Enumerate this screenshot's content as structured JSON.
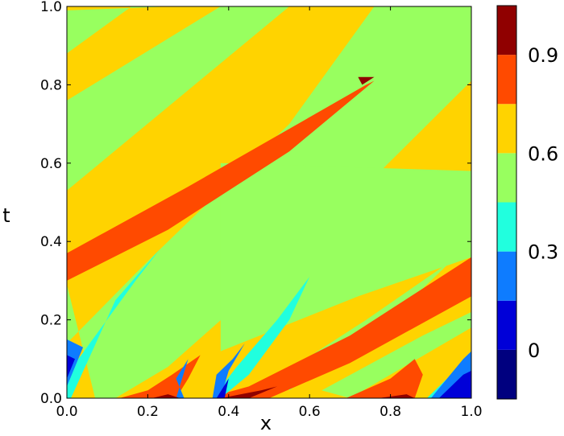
{
  "chart_data": {
    "type": "heatmap",
    "subtype": "filled-contour",
    "title": "",
    "xlabel": "x",
    "ylabel": "t",
    "xlim": [
      0.0,
      1.0
    ],
    "ylim": [
      0.0,
      1.0
    ],
    "x_ticks": [
      "0.0",
      "0.2",
      "0.4",
      "0.6",
      "0.8",
      "1.0"
    ],
    "y_ticks": [
      "0.0",
      "0.2",
      "0.4",
      "0.6",
      "0.8",
      "1.0"
    ],
    "grid": false,
    "colormap": "jet",
    "colorbar": {
      "position": "right",
      "range": [
        -0.15,
        1.05
      ],
      "levels": [
        -0.15,
        0.0,
        0.15,
        0.3,
        0.45,
        0.6,
        0.75,
        0.9,
        1.05
      ],
      "tick_labels": [
        "0",
        "0.3",
        "0.6",
        "0.9"
      ],
      "tick_values": [
        0.0,
        0.3,
        0.6,
        0.9
      ],
      "colors": [
        "#00007f",
        "#0000d8",
        "#0e7cff",
        "#21ffde",
        "#98ff5f",
        "#ffd300",
        "#ff4a00",
        "#900000"
      ]
    },
    "regions": [
      {
        "level": 5,
        "points": [
          [
            0.0,
            1.0
          ],
          [
            1.0,
            1.0
          ],
          [
            1.0,
            0.0
          ],
          [
            0.0,
            0.0
          ]
        ]
      },
      {
        "level": 4,
        "points": [
          [
            0.0,
            0.99
          ],
          [
            0.26,
            1.0
          ],
          [
            0.16,
            1.0
          ],
          [
            0.0,
            0.88
          ]
        ]
      },
      {
        "level": 4,
        "points": [
          [
            0.0,
            0.76
          ],
          [
            0.0,
            0.53
          ],
          [
            0.55,
            1.0
          ],
          [
            0.38,
            1.0
          ],
          [
            0.0,
            0.76
          ]
        ]
      },
      {
        "level": 4,
        "points": [
          [
            0.0,
            0.29
          ],
          [
            0.0,
            0.14
          ],
          [
            0.2,
            0.35
          ],
          [
            0.55,
            0.7
          ],
          [
            0.76,
            1.0
          ],
          [
            0.72,
            1.0
          ],
          [
            0.93,
            1.0
          ],
          [
            1.0,
            1.0
          ],
          [
            1.0,
            0.81
          ],
          [
            0.6,
            0.4
          ],
          [
            0.25,
            0.08
          ],
          [
            0.12,
            0.0
          ],
          [
            0.07,
            0.0
          ],
          [
            0.0,
            0.29
          ]
        ]
      },
      {
        "level": 4,
        "points": [
          [
            0.38,
            0.6
          ],
          [
            1.0,
            0.58
          ],
          [
            1.0,
            0.36
          ],
          [
            0.72,
            0.26
          ],
          [
            0.38,
            0.12
          ],
          [
            0.38,
            0.6
          ]
        ]
      },
      {
        "level": 4,
        "points": [
          [
            0.53,
            0.06
          ],
          [
            0.74,
            0.2
          ],
          [
            0.95,
            0.35
          ],
          [
            0.8,
            0.2
          ],
          [
            0.55,
            0.02
          ],
          [
            0.53,
            0.06
          ]
        ]
      },
      {
        "level": 4,
        "points": [
          [
            0.63,
            0.02
          ],
          [
            0.88,
            0.16
          ],
          [
            1.0,
            0.22
          ],
          [
            1.0,
            0.18
          ],
          [
            0.7,
            0.0
          ],
          [
            0.63,
            0.02
          ]
        ]
      },
      {
        "level": 6,
        "points": [
          [
            0.0,
            0.37
          ],
          [
            0.3,
            0.54
          ],
          [
            0.74,
            0.8
          ],
          [
            0.76,
            0.81
          ],
          [
            0.55,
            0.63
          ],
          [
            0.25,
            0.43
          ],
          [
            0.0,
            0.3
          ]
        ]
      },
      {
        "level": 6,
        "points": [
          [
            0.38,
            0.01
          ],
          [
            0.45,
            0.03
          ],
          [
            0.7,
            0.16
          ],
          [
            1.0,
            0.36
          ],
          [
            1.0,
            0.26
          ],
          [
            0.7,
            0.09
          ],
          [
            0.5,
            0.0
          ],
          [
            0.38,
            0.0
          ]
        ]
      },
      {
        "level": 6,
        "points": [
          [
            0.13,
            0.0
          ],
          [
            0.2,
            0.02
          ],
          [
            0.26,
            0.06
          ],
          [
            0.33,
            0.11
          ],
          [
            0.3,
            0.05
          ],
          [
            0.27,
            0.0
          ]
        ]
      },
      {
        "level": 6,
        "points": [
          [
            0.69,
            0.0
          ],
          [
            0.8,
            0.05
          ],
          [
            0.86,
            0.1
          ],
          [
            0.88,
            0.06
          ],
          [
            0.86,
            0.0
          ]
        ]
      },
      {
        "level": 3,
        "points": [
          [
            0.0,
            0.06
          ],
          [
            0.0,
            0.0
          ],
          [
            0.01,
            0.0
          ],
          [
            0.12,
            0.25
          ],
          [
            0.23,
            0.38
          ],
          [
            0.17,
            0.3
          ],
          [
            0.0,
            0.06
          ]
        ]
      },
      {
        "level": 3,
        "points": [
          [
            0.36,
            0.0
          ],
          [
            0.42,
            0.08
          ],
          [
            0.52,
            0.2
          ],
          [
            0.6,
            0.31
          ],
          [
            0.55,
            0.2
          ],
          [
            0.45,
            0.06
          ],
          [
            0.38,
            0.0
          ]
        ]
      },
      {
        "level": 3,
        "points": [
          [
            0.89,
            0.0
          ],
          [
            0.94,
            0.05
          ],
          [
            1.0,
            0.12
          ],
          [
            1.0,
            0.05
          ],
          [
            0.92,
            0.0
          ]
        ]
      },
      {
        "level": 2,
        "points": [
          [
            0.0,
            0.03
          ],
          [
            0.04,
            0.13
          ],
          [
            0.0,
            0.15
          ]
        ]
      },
      {
        "level": 2,
        "points": [
          [
            0.27,
            0.0
          ],
          [
            0.3,
            0.1
          ],
          [
            0.27,
            0.05
          ],
          [
            0.29,
            0.0
          ]
        ]
      },
      {
        "level": 2,
        "points": [
          [
            0.36,
            0.0
          ],
          [
            0.37,
            0.06
          ],
          [
            0.41,
            0.1
          ],
          [
            0.44,
            0.14
          ],
          [
            0.4,
            0.07
          ],
          [
            0.38,
            0.0
          ]
        ]
      },
      {
        "level": 2,
        "points": [
          [
            0.9,
            0.0
          ],
          [
            0.98,
            0.1
          ],
          [
            1.0,
            0.12
          ],
          [
            1.0,
            0.05
          ],
          [
            0.95,
            0.0
          ]
        ]
      },
      {
        "level": 1,
        "points": [
          [
            0.0,
            0.05
          ],
          [
            0.02,
            0.1
          ],
          [
            0.0,
            0.11
          ]
        ]
      },
      {
        "level": 1,
        "points": [
          [
            0.92,
            0.0
          ],
          [
            0.98,
            0.06
          ],
          [
            1.0,
            0.07
          ],
          [
            1.0,
            0.0
          ]
        ]
      },
      {
        "level": 1,
        "points": [
          [
            0.37,
            0.0
          ],
          [
            0.4,
            0.05
          ],
          [
            0.39,
            0.0
          ]
        ]
      },
      {
        "level": 7,
        "points": [
          [
            0.21,
            0.0
          ],
          [
            0.25,
            0.01
          ],
          [
            0.28,
            0.0
          ]
        ]
      },
      {
        "level": 7,
        "points": [
          [
            0.38,
            0.0
          ],
          [
            0.48,
            0.02
          ],
          [
            0.52,
            0.03
          ],
          [
            0.45,
            0.0
          ]
        ]
      },
      {
        "level": 7,
        "points": [
          [
            0.77,
            0.0
          ],
          [
            0.84,
            0.01
          ],
          [
            0.86,
            0.0
          ]
        ]
      },
      {
        "level": 7,
        "points": [
          [
            0.72,
            0.82
          ],
          [
            0.76,
            0.82
          ],
          [
            0.73,
            0.8
          ]
        ]
      }
    ]
  }
}
